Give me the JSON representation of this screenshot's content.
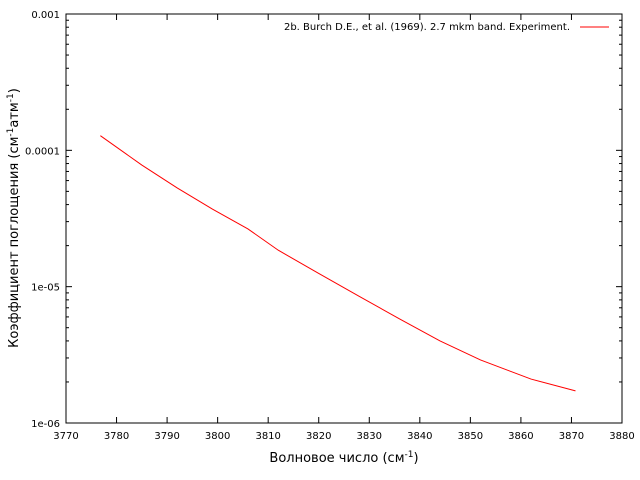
{
  "chart_data": {
    "type": "line",
    "xlabel": "Волновое число (см",
    "xlabel_sup": "-1",
    "xlabel_end": ")",
    "ylabel_parts": [
      "Коэффициент поглощения (см",
      "-1",
      "атм",
      "-1",
      ")"
    ],
    "xlim": [
      3770,
      3880
    ],
    "ylim": [
      1e-06,
      0.001
    ],
    "yscale": "log",
    "grid": false,
    "legend_position": "top-right",
    "x_ticks": [
      "3770",
      "3780",
      "3790",
      "3800",
      "3810",
      "3820",
      "3830",
      "3840",
      "3850",
      "3860",
      "3870",
      "3880"
    ],
    "y_ticks": [
      {
        "value": 0.001,
        "label": "0.001"
      },
      {
        "value": 0.0001,
        "label": "0.0001"
      },
      {
        "value": 1e-05,
        "label": "1e-05"
      },
      {
        "value": 1e-06,
        "label": "1e-06"
      }
    ],
    "series": [
      {
        "name": "2b. Burch D.E., et al. (1969). 2.7 mkm band. Experiment.",
        "color": "#ff0000",
        "x": [
          3776.8,
          3785,
          3792,
          3799,
          3806,
          3812,
          3820,
          3828,
          3836,
          3844,
          3852,
          3862,
          3870.8
        ],
        "y": [
          0.000128,
          7.8e-05,
          5.3e-05,
          3.7e-05,
          2.65e-05,
          1.85e-05,
          1.25e-05,
          8.5e-06,
          5.8e-06,
          4e-06,
          2.9e-06,
          2.1e-06,
          1.72e-06
        ]
      }
    ]
  }
}
